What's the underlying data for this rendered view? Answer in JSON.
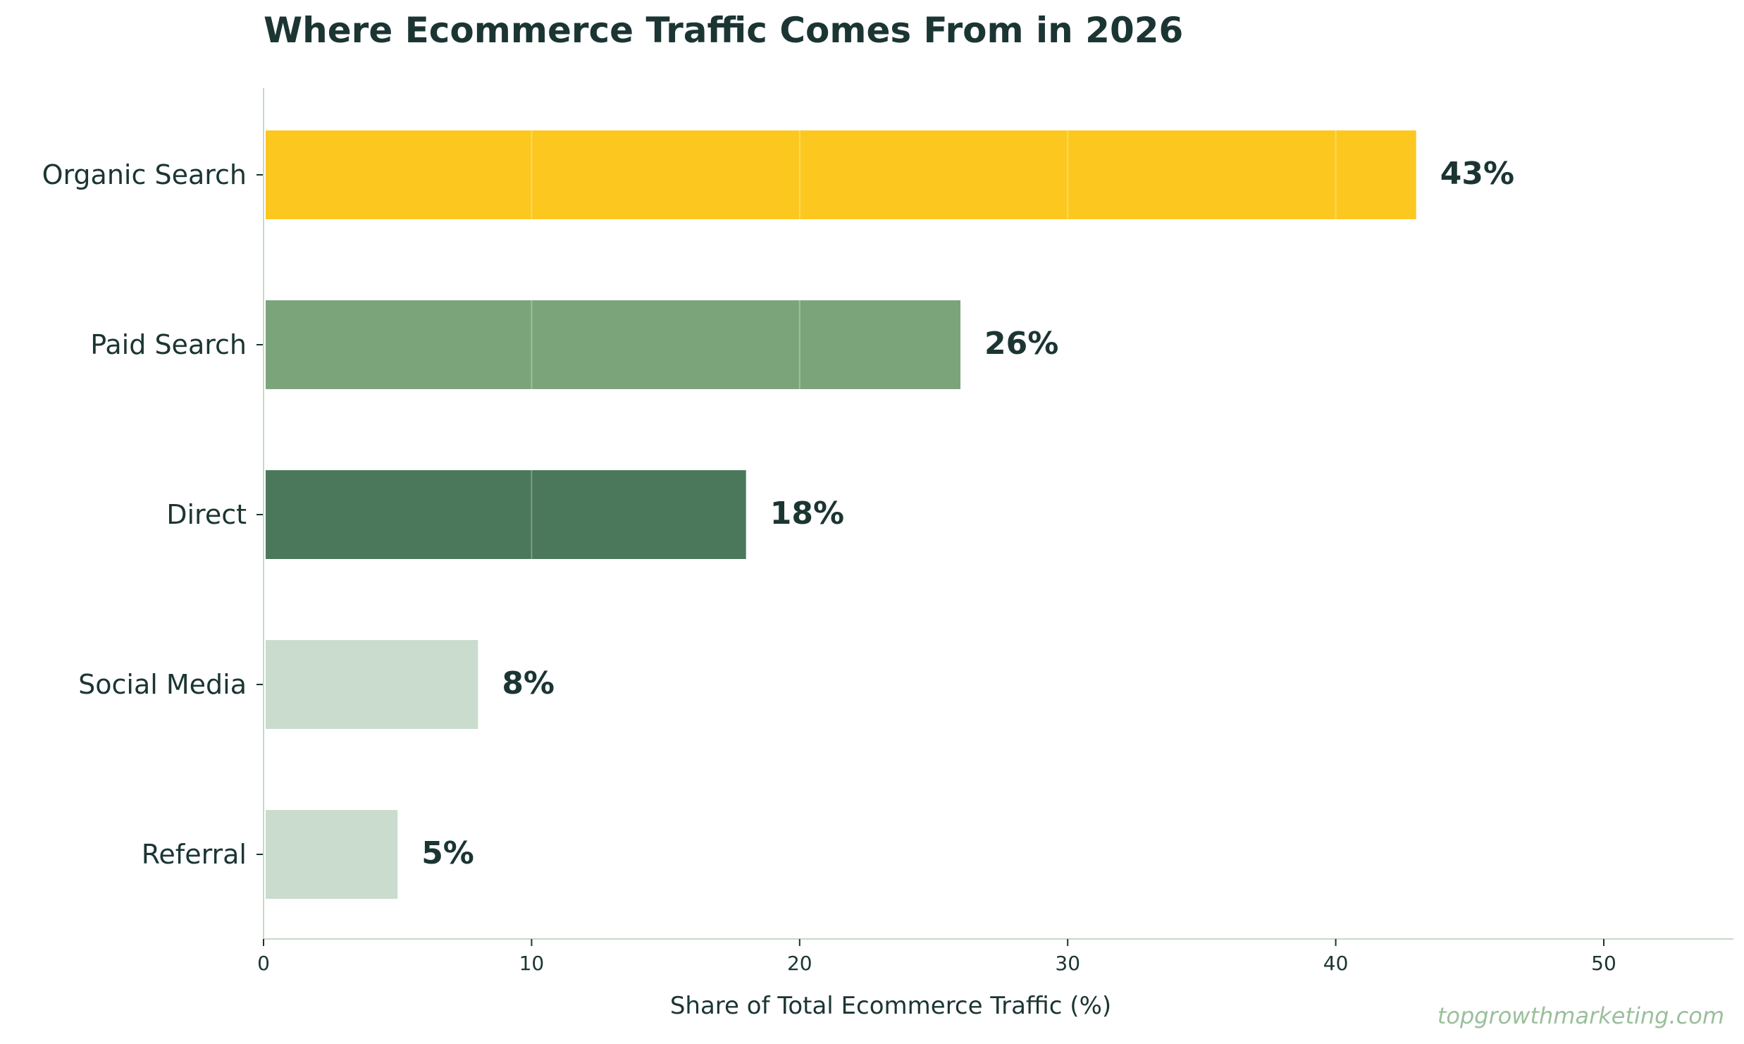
{
  "chart_data": {
    "type": "bar",
    "orientation": "horizontal",
    "title": "Where Ecommerce Traffic Comes From in 2026",
    "xlabel": "Share of Total Ecommerce Traffic (%)",
    "ylabel": "",
    "xlim": [
      0,
      55
    ],
    "xticks": [
      0,
      10,
      20,
      30,
      40,
      50
    ],
    "categories": [
      "Organic Search",
      "Paid Search",
      "Direct",
      "Social Media",
      "Referral"
    ],
    "values": [
      43,
      26,
      18,
      8,
      5
    ],
    "data_labels": [
      "43%",
      "26%",
      "18%",
      "8%",
      "5%"
    ],
    "bar_colors": [
      "#fcc820",
      "#7ca47b",
      "#4b785b",
      "#c9dccd",
      "#c9dccd"
    ],
    "grid": "vertical lines at ticks, visible only through bars",
    "legend": "none"
  },
  "watermark": "topgrowthmarketing.com",
  "colors": {
    "text": "#1b3533",
    "axis": "#c4dac6",
    "watermark": "#9bbf9c"
  }
}
